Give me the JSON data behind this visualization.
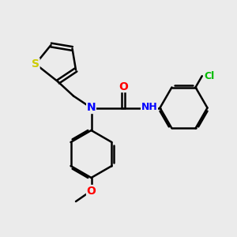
{
  "background_color": "#ebebeb",
  "bond_color": "#000000",
  "bond_width": 1.8,
  "atom_colors": {
    "S": "#cccc00",
    "N": "#0000ff",
    "O_carbonyl": "#ff0000",
    "O_ether": "#ff0000",
    "Cl": "#00bb00",
    "H": "#009999"
  },
  "font_size": 9,
  "fig_size": [
    3.0,
    3.0
  ],
  "dpi": 100,
  "xlim": [
    0,
    10
  ],
  "ylim": [
    0,
    10
  ]
}
